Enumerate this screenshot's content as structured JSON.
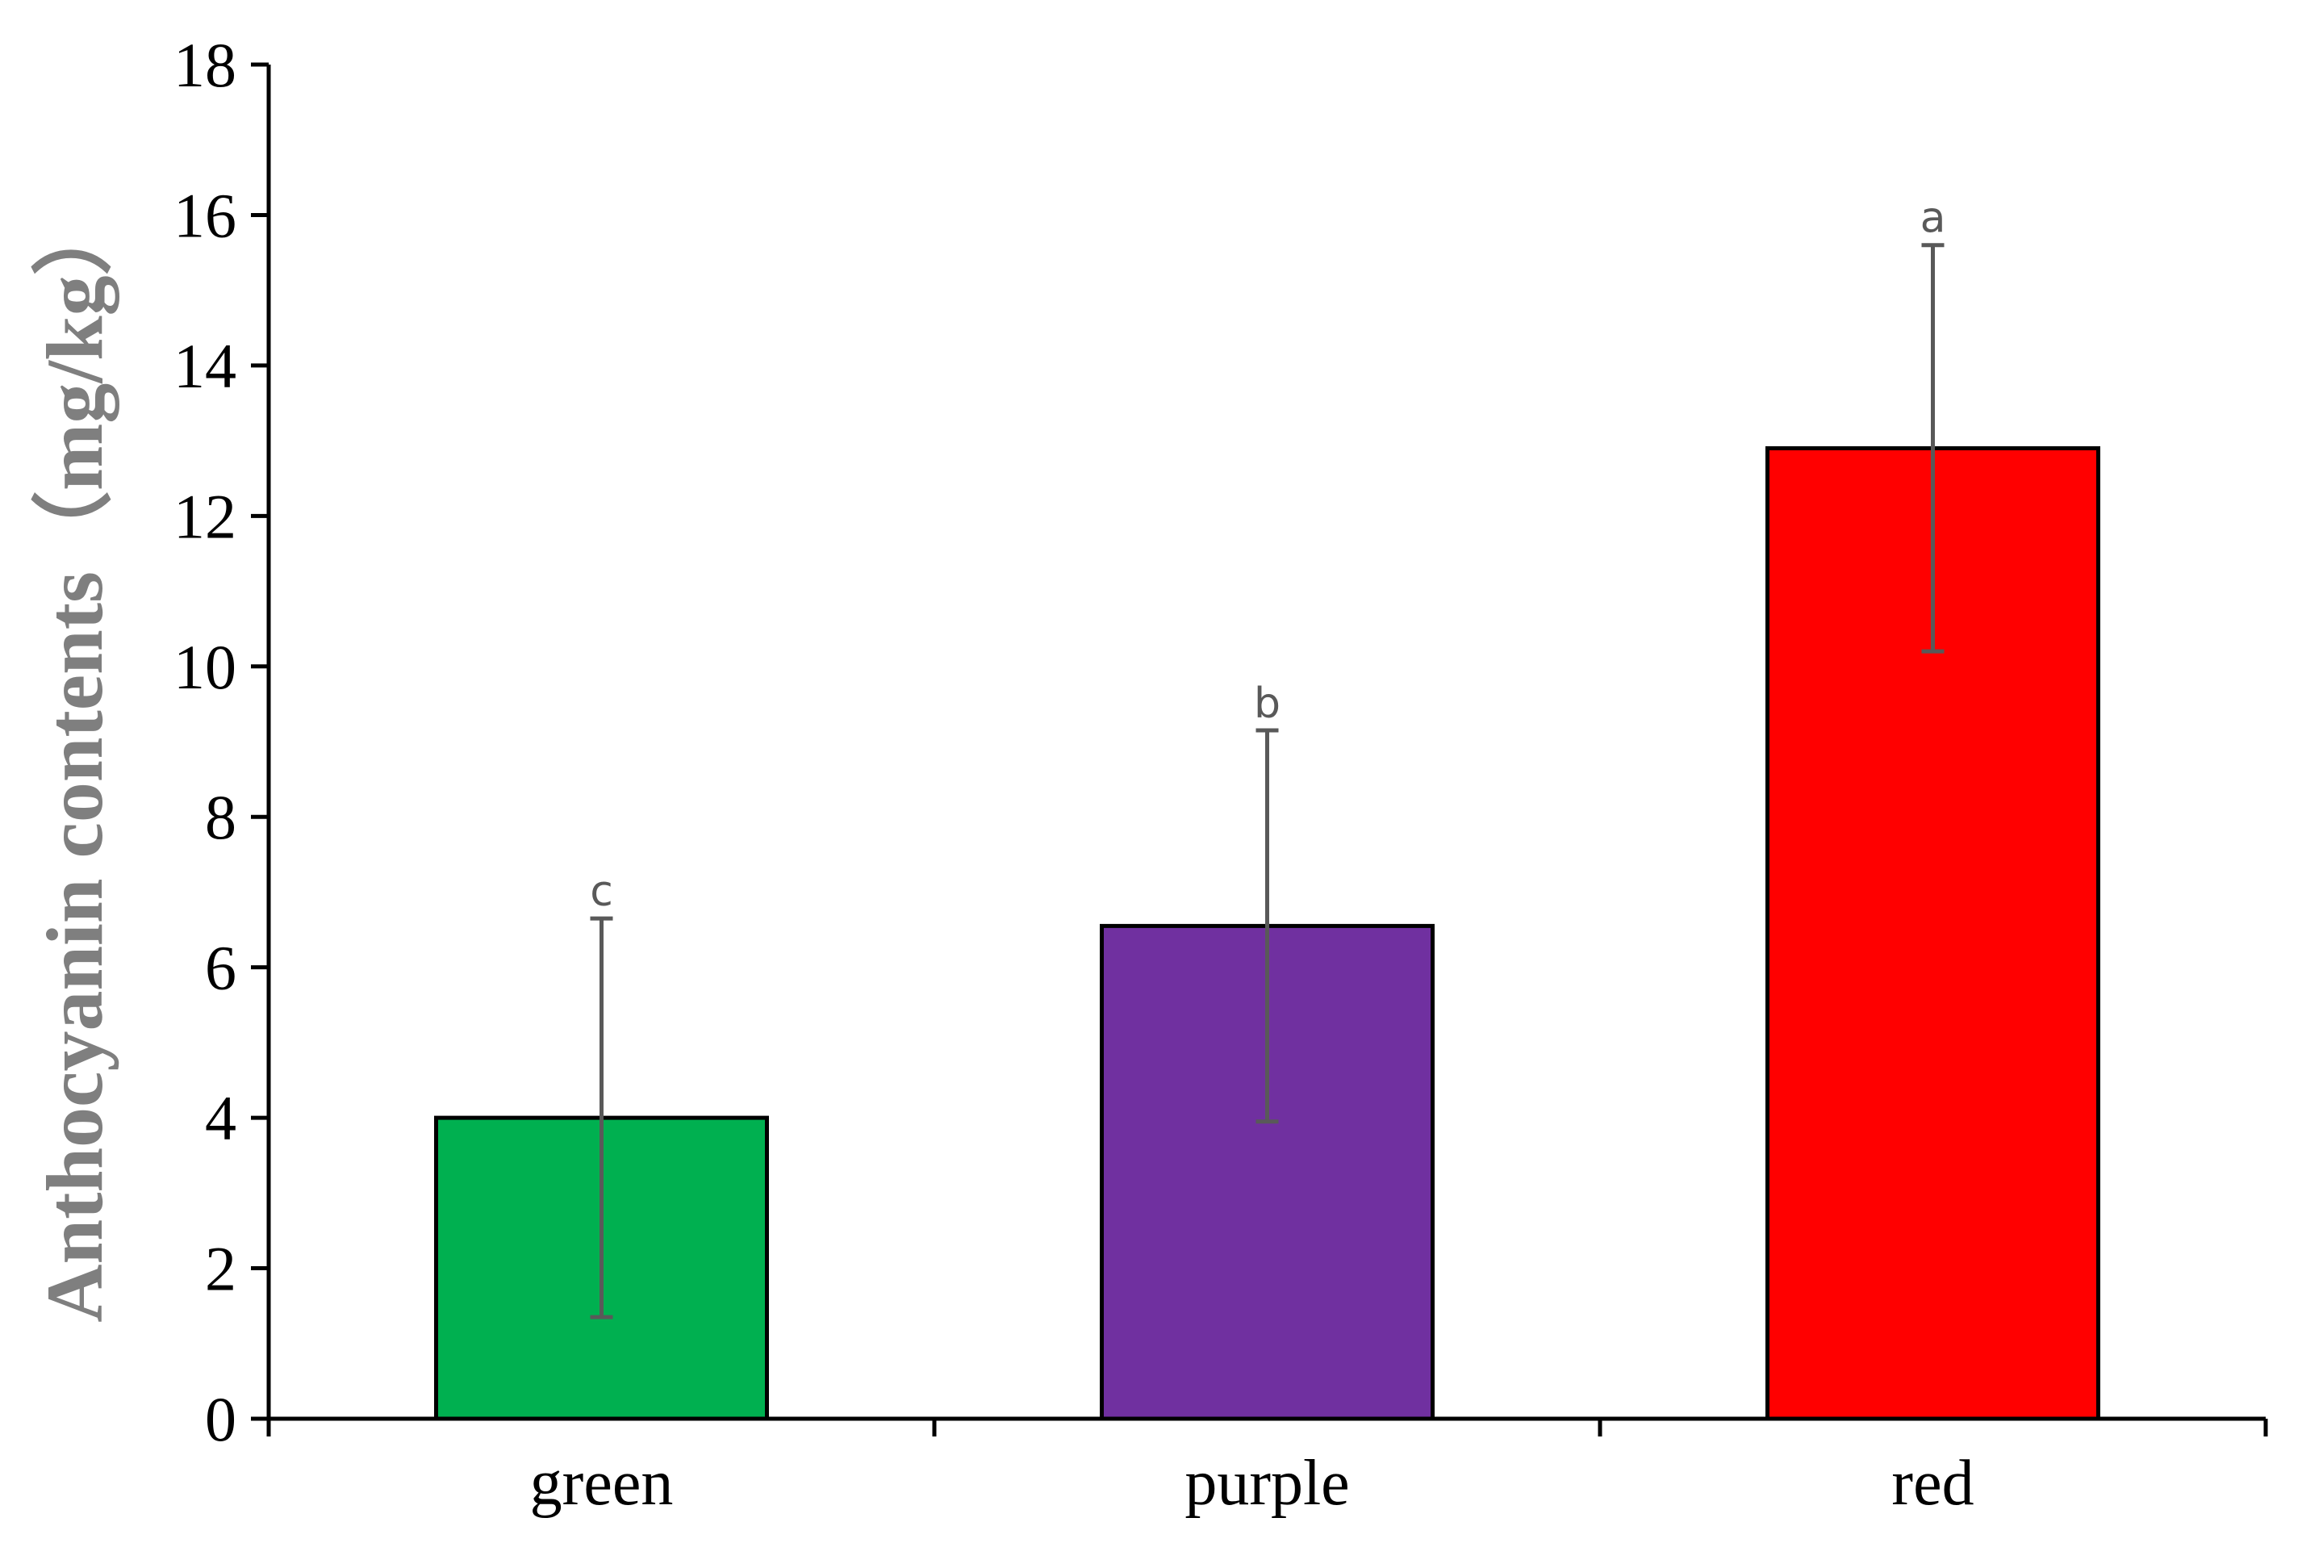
{
  "chart_data": {
    "type": "bar",
    "title": "",
    "xlabel": "",
    "ylabel": "Anthocyanin contents（mg/kg）",
    "categories": [
      "green",
      "purple",
      "red"
    ],
    "values": [
      4.0,
      6.55,
      12.9
    ],
    "errors": [
      2.65,
      2.6,
      2.7
    ],
    "significance_labels": [
      "c",
      "b",
      "a"
    ],
    "colors": [
      "#00b050",
      "#7030a0",
      "#ff0000"
    ],
    "ylim": [
      0,
      18
    ],
    "yticks": [
      0,
      2,
      4,
      6,
      8,
      10,
      12,
      14,
      16,
      18
    ],
    "grid": false,
    "legend": "none"
  }
}
